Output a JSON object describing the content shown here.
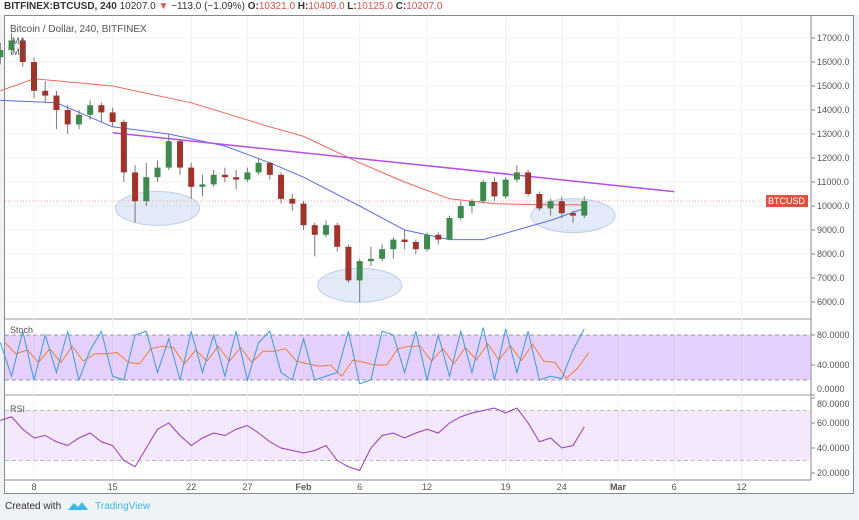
{
  "header": {
    "symbol": "BITFINEX:BTCUSD, 240",
    "last": "10207.0",
    "change": "−113.0 (−1.09%)",
    "o_label": "O:",
    "o": "10321.0",
    "h_label": "H:",
    "h": "10409.0",
    "l_label": "L:",
    "l": "10125.0",
    "c_label": "C:",
    "c": "10207.0",
    "direction_icon": "triangle-down"
  },
  "footer": {
    "created_with": "Created with",
    "brand": "TradingView"
  },
  "colors": {
    "up": "#3e8a4f",
    "down": "#a0342b",
    "ma_slow": "#f4655b",
    "ma_fast": "#5b6ee8",
    "trendline": "#b64ef0",
    "stoch_k": "#3a9be0",
    "stoch_d": "#f07d3a",
    "rsi": "#9c38b8",
    "price_tag": "#e0503c"
  },
  "chart_data": [
    {
      "type": "candlestick",
      "title": "Bitcoin / Dollar, 240, BITFINEX",
      "legend": [
        "MA",
        "MA"
      ],
      "price_tag": "BTCUSD",
      "ylim": [
        5500,
        17500
      ],
      "y_ticks": [
        "17000.0",
        "16000.0",
        "15000.0",
        "14000.0",
        "13000.0",
        "12000.0",
        "11000.0",
        "10000.0",
        "9000.0",
        "8000.0",
        "7000.0",
        "6000.0"
      ],
      "x_ticks": [
        "8",
        "15",
        "22",
        "27",
        "Feb",
        "6",
        "12",
        "19",
        "24",
        "Mar",
        "6",
        "12"
      ],
      "candles": [
        [
          "Jan 5",
          16200,
          16800,
          15900,
          16500
        ],
        [
          "Jan 6",
          16500,
          17200,
          16300,
          16900
        ],
        [
          "Jan 7",
          16900,
          17000,
          15800,
          16000
        ],
        [
          "Jan 8",
          16000,
          16200,
          14500,
          14800
        ],
        [
          "Jan 9",
          14800,
          15200,
          14300,
          14600
        ],
        [
          "Jan 10",
          14600,
          14800,
          13200,
          14000
        ],
        [
          "Jan 11",
          14000,
          14200,
          13000,
          13400
        ],
        [
          "Jan 12",
          13400,
          14000,
          13200,
          13800
        ],
        [
          "Jan 13",
          13800,
          14400,
          13600,
          14200
        ],
        [
          "Jan 14",
          14200,
          14300,
          13500,
          13900
        ],
        [
          "Jan 15",
          13900,
          14100,
          13300,
          13500
        ],
        [
          "Jan 16",
          13500,
          13600,
          11000,
          11400
        ],
        [
          "Jan 17",
          11400,
          11700,
          9300,
          10200
        ],
        [
          "Jan 18",
          10200,
          11800,
          10000,
          11200
        ],
        [
          "Jan 19",
          11200,
          11900,
          11000,
          11600
        ],
        [
          "Jan 20",
          11600,
          13000,
          11500,
          12700
        ],
        [
          "Jan 21",
          12700,
          12800,
          11300,
          11600
        ],
        [
          "Jan 22",
          11600,
          11800,
          10300,
          10800
        ],
        [
          "Jan 23",
          10800,
          11300,
          10400,
          10900
        ],
        [
          "Jan 24",
          10900,
          11500,
          10800,
          11300
        ],
        [
          "Jan 25",
          11300,
          11600,
          11000,
          11200
        ],
        [
          "Jan 26",
          11200,
          11500,
          10700,
          11100
        ],
        [
          "Jan 27",
          11100,
          11600,
          11000,
          11400
        ],
        [
          "Jan 28",
          11400,
          12000,
          11300,
          11800
        ],
        [
          "Jan 29",
          11800,
          11850,
          11100,
          11300
        ],
        [
          "Jan 30",
          11300,
          11400,
          10100,
          10300
        ],
        [
          "Jan 31",
          10300,
          10500,
          9800,
          10100
        ],
        [
          "Feb 1",
          10100,
          10200,
          9000,
          9200
        ],
        [
          "Feb 2",
          9200,
          9300,
          7900,
          8800
        ],
        [
          "Feb 3",
          8800,
          9400,
          8700,
          9200
        ],
        [
          "Feb 4",
          9200,
          9300,
          8100,
          8300
        ],
        [
          "Feb 5",
          8300,
          8400,
          6800,
          6900
        ],
        [
          "Feb 6",
          6900,
          7800,
          6000,
          7700
        ],
        [
          "Feb 7",
          7700,
          8300,
          7500,
          7800
        ],
        [
          "Feb 8",
          7800,
          8400,
          7700,
          8200
        ],
        [
          "Feb 9",
          8200,
          8700,
          7800,
          8600
        ],
        [
          "Feb 10",
          8600,
          9000,
          8200,
          8500
        ],
        [
          "Feb 11",
          8500,
          8600,
          8000,
          8200
        ],
        [
          "Feb 12",
          8200,
          8900,
          8100,
          8800
        ],
        [
          "Feb 13",
          8800,
          8900,
          8400,
          8600
        ],
        [
          "Feb 14",
          8600,
          9600,
          8600,
          9500
        ],
        [
          "Feb 15",
          9500,
          10200,
          9400,
          10000
        ],
        [
          "Feb 16",
          10000,
          10300,
          9700,
          10200
        ],
        [
          "Feb 17",
          10200,
          11100,
          10100,
          11000
        ],
        [
          "Feb 18",
          11000,
          11200,
          10200,
          10400
        ],
        [
          "Feb 19",
          10400,
          11200,
          10300,
          11100
        ],
        [
          "Feb 20",
          11100,
          11700,
          11000,
          11400
        ],
        [
          "Feb 21",
          11400,
          11500,
          10400,
          10500
        ],
        [
          "Feb 22",
          10500,
          10600,
          9800,
          9900
        ],
        [
          "Feb 23",
          9900,
          10300,
          9600,
          10200
        ],
        [
          "Feb 24",
          10200,
          10400,
          9500,
          9700
        ],
        [
          "Feb 25",
          9700,
          9800,
          9300,
          9600
        ],
        [
          "Feb 26",
          9600,
          10409,
          9500,
          10207
        ]
      ],
      "ma_slow": [
        [
          "Jan 5",
          14800
        ],
        [
          "Jan 8",
          15300
        ],
        [
          "Jan 15",
          15000
        ],
        [
          "Jan 22",
          14300
        ],
        [
          "Jan 29",
          13300
        ],
        [
          "Feb 1",
          12900
        ],
        [
          "Feb 6",
          11800
        ],
        [
          "Feb 10",
          11000
        ],
        [
          "Feb 14",
          10300
        ],
        [
          "Feb 18",
          10100
        ],
        [
          "Feb 22",
          10050
        ],
        [
          "Feb 26",
          10050
        ]
      ],
      "ma_fast": [
        [
          "Jan 5",
          14400
        ],
        [
          "Jan 10",
          14300
        ],
        [
          "Jan 15",
          13300
        ],
        [
          "Jan 20",
          13000
        ],
        [
          "Jan 25",
          12500
        ],
        [
          "Jan 29",
          11800
        ],
        [
          "Feb 1",
          11200
        ],
        [
          "Feb 6",
          10000
        ],
        [
          "Feb 10",
          9000
        ],
        [
          "Feb 14",
          8600
        ],
        [
          "Feb 17",
          8600
        ],
        [
          "Feb 20",
          9000
        ],
        [
          "Feb 23",
          9400
        ],
        [
          "Feb 26",
          9900
        ]
      ],
      "trendline": [
        [
          "Jan 15",
          13050
        ],
        [
          "Mar 6",
          10600
        ]
      ],
      "highlights": [
        [
          "Jan 19",
          9900
        ],
        [
          "Feb 6",
          6700
        ],
        [
          "Feb 25",
          9600
        ]
      ]
    },
    {
      "type": "line",
      "title": "Stoch",
      "ylim": [
        0,
        90
      ],
      "band": [
        20,
        80
      ],
      "y_ticks": [
        "80.0000",
        "40.0000",
        "0.0000"
      ],
      "k": [
        70,
        25,
        85,
        20,
        80,
        30,
        85,
        20,
        60,
        85,
        25,
        20,
        80,
        85,
        30,
        75,
        20,
        85,
        30,
        80,
        25,
        85,
        20,
        70,
        85,
        30,
        20,
        75,
        20,
        25,
        30,
        85,
        15,
        20,
        85,
        80,
        30,
        85,
        20,
        80,
        25,
        85,
        30,
        90,
        20,
        88,
        30,
        85,
        20,
        25,
        22,
        60,
        88
      ]
    },
    {
      "type": "line",
      "title": "RSI",
      "ylim": [
        15,
        80
      ],
      "band": [
        30,
        70
      ],
      "y_ticks": [
        "80.0000",
        "60.0000",
        "40.0000",
        "20.0000"
      ],
      "values": [
        62,
        65,
        55,
        48,
        50,
        45,
        42,
        48,
        52,
        45,
        42,
        30,
        25,
        40,
        55,
        60,
        50,
        42,
        48,
        52,
        50,
        55,
        58,
        52,
        45,
        40,
        38,
        36,
        38,
        42,
        30,
        25,
        22,
        40,
        50,
        52,
        48,
        52,
        55,
        52,
        60,
        65,
        68,
        70,
        72,
        68,
        72,
        60,
        45,
        48,
        40,
        42,
        57
      ]
    }
  ]
}
